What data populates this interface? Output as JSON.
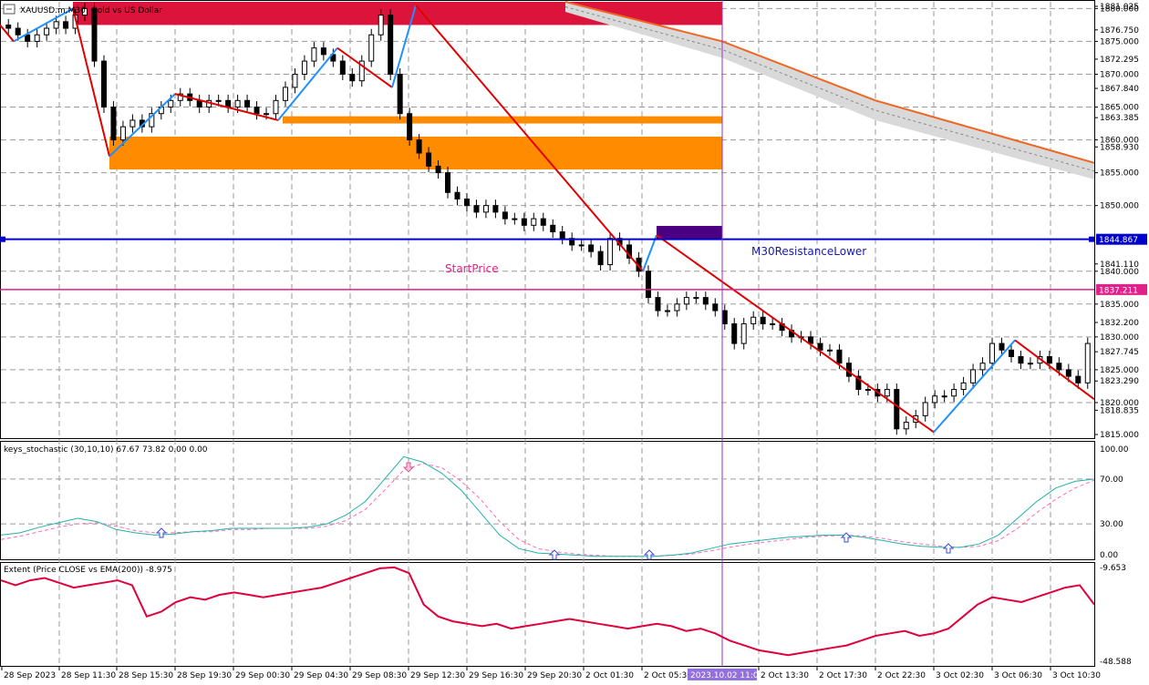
{
  "window": {
    "symbol_title": "XAUUSD.m,M30: Gold vs US Dollar"
  },
  "price_axis": {
    "ticks": [
      "1881.025",
      "1880.000",
      "1876.750",
      "1875.000",
      "1872.295",
      "1870.000",
      "1867.840",
      "1865.000",
      "1863.385",
      "1860.000",
      "1858.930",
      "1855.000",
      "1850.000",
      "1841.110",
      "1840.000",
      "1835.000",
      "1832.200",
      "1830.000",
      "1827.745",
      "1825.000",
      "1823.290",
      "1820.000",
      "1818.835",
      "1815.000"
    ],
    "range": [
      1815.0,
      1881.025
    ]
  },
  "price_badges": [
    {
      "label": "1844.867",
      "value": 1844.867,
      "color": "#0000cc"
    },
    {
      "label": "1837.211",
      "value": 1837.211,
      "color": "#e0218a"
    }
  ],
  "horizontal_lines": [
    {
      "value": 1844.867,
      "color": "#0000cc",
      "label": "M30ResistanceLower"
    },
    {
      "value": 1837.211,
      "color": "#e0218a",
      "label": "StartPrice"
    }
  ],
  "zones": [
    {
      "from": 1877.5,
      "to": 1881.025,
      "color": "#dc143c"
    },
    {
      "from": 1862.5,
      "to": 1863.6,
      "color": "#ff8c00"
    },
    {
      "from": 1855.5,
      "to": 1860.5,
      "color": "#ff8c00"
    },
    {
      "from": 1844.867,
      "to": 1846.9,
      "color": "#4b0082"
    }
  ],
  "stochastic": {
    "title": "keys_stochastic (30,10,10) 67.67 73.82 0.00 0.00",
    "ticks": [
      "100.00",
      "70.00",
      "30.00",
      "0.00"
    ],
    "main_color": "#20b2aa",
    "signal_color": "#ff69b4",
    "arrow_color": "#3a4ad8"
  },
  "extent": {
    "title": "Extent (Price CLOSE vs EMA(200)) -8.975",
    "ticks": [
      "-9.653",
      "-48.588"
    ],
    "color": "#e0003c"
  },
  "time_axis": {
    "labels": [
      "28 Sep 2023",
      "28 Sep 11:30",
      "28 Sep 15:30",
      "28 Sep 19:30",
      "29 Sep 00:30",
      "29 Sep 04:30",
      "29 Sep 08:30",
      "29 Sep 12:30",
      "29 Sep 16:30",
      "29 Sep 20:30",
      "2 Oct 01:30",
      "2 Oct 05:30",
      "2023.10.02 11:00",
      "2 Oct 13:30",
      "2 Oct 17:30",
      "2 Oct 22:30",
      "3 Oct 02:30",
      "3 Oct 06:30",
      "3 Oct 10:30"
    ],
    "cursor_label": "2023.10.02 11:00"
  },
  "chart_data": {
    "type": "candlestick",
    "symbol": "XAUUSD.m",
    "timeframe": "M30",
    "y_range": [
      1815.0,
      1881.025
    ],
    "zigzag_points": [
      {
        "time": "28 Sep 2023",
        "price": 1877.5
      },
      {
        "time": "28 Sep 09:30",
        "price": 1875.0
      },
      {
        "time": "28 Sep 11:30",
        "price": 1880.0
      },
      {
        "time": "28 Sep 13:30",
        "price": 1857.5
      },
      {
        "time": "28 Sep 19:30",
        "price": 1867.0
      },
      {
        "time": "29 Sep 02:00",
        "price": 1863.0
      },
      {
        "time": "29 Sep 06:00",
        "price": 1874.0
      },
      {
        "time": "29 Sep 11:30",
        "price": 1868.0
      },
      {
        "time": "29 Sep 12:30",
        "price": 1880.5
      },
      {
        "time": "2 Oct 04:30",
        "price": 1840.0
      },
      {
        "time": "2 Oct 05:30",
        "price": 1845.5
      },
      {
        "time": "3 Oct 02:00",
        "price": 1815.5
      },
      {
        "time": "3 Oct 06:30",
        "price": 1829.5
      },
      {
        "time": "3 Oct 11:30",
        "price": 1820.5
      }
    ],
    "ema_band": [
      {
        "time": "29 Sep 20:30",
        "upper": 1881.025,
        "lower": 1879.5
      },
      {
        "time": "2 Oct 05:30",
        "upper": 1875.0,
        "lower": 1872.5
      },
      {
        "time": "2 Oct 17:30",
        "upper": 1866.0,
        "lower": 1863.0
      },
      {
        "time": "3 Oct 10:30",
        "upper": 1856.5,
        "lower": 1854.0
      }
    ],
    "close_series": [
      1877,
      1876,
      1875,
      1876,
      1877,
      1878,
      1877,
      1879,
      1880,
      1872,
      1865,
      1860,
      1862,
      1863,
      1862,
      1864,
      1865,
      1866,
      1867,
      1866,
      1865,
      1866,
      1866,
      1865,
      1866,
      1865,
      1864,
      1864,
      1866,
      1868,
      1870,
      1872,
      1874,
      1873,
      1872,
      1870,
      1869,
      1872,
      1876,
      1879,
      1870,
      1864,
      1860,
      1858,
      1856,
      1855,
      1852,
      1851,
      1850,
      1849,
      1850,
      1849,
      1848,
      1848,
      1847,
      1848,
      1847,
      1846,
      1845,
      1844,
      1844,
      1843,
      1841,
      1845,
      1844,
      1842,
      1840,
      1836,
      1834,
      1834,
      1835,
      1836,
      1836,
      1835,
      1834,
      1832,
      1829,
      1832,
      1833,
      1832,
      1832,
      1831,
      1830,
      1830,
      1829,
      1828,
      1828,
      1826,
      1824,
      1822,
      1822,
      1821,
      1822,
      1816,
      1817,
      1818,
      1820,
      1821,
      1821,
      1822,
      1823,
      1825,
      1826,
      1829,
      1828,
      1827,
      1826,
      1826,
      1827,
      1826,
      1825,
      1824,
      1823,
      1829
    ],
    "stochastic_main": [
      20,
      22,
      27,
      31,
      35,
      32,
      25,
      22,
      20,
      21,
      23,
      24,
      26,
      26,
      26,
      26,
      27,
      30,
      38,
      50,
      70,
      90,
      85,
      75,
      60,
      40,
      20,
      8,
      4,
      3,
      2,
      1,
      1,
      1,
      1,
      2,
      4,
      8,
      12,
      14,
      16,
      18,
      19,
      20,
      20,
      18,
      15,
      12,
      10,
      9,
      9,
      12,
      20,
      35,
      50,
      62,
      68,
      70
    ],
    "stochastic_signal": [
      16,
      19,
      23,
      27,
      30,
      31,
      28,
      24,
      22,
      22,
      23,
      23,
      25,
      25,
      26,
      26,
      26,
      28,
      33,
      43,
      60,
      78,
      84,
      80,
      68,
      52,
      32,
      16,
      8,
      5,
      3,
      2,
      1,
      1,
      1,
      2,
      3,
      6,
      9,
      12,
      14,
      16,
      18,
      19,
      20,
      19,
      17,
      14,
      12,
      10,
      9,
      10,
      15,
      26,
      40,
      52,
      62,
      69
    ],
    "extent_series": [
      -15,
      -17,
      -15,
      -14,
      -16,
      -18,
      -17,
      -16,
      -15,
      -17,
      -30,
      -28,
      -24,
      -22,
      -23,
      -21,
      -20,
      -21,
      -22,
      -21,
      -20,
      -19,
      -18,
      -16,
      -14,
      -12,
      -10,
      -9.6,
      -12,
      -25,
      -30,
      -32,
      -33,
      -34,
      -33,
      -35,
      -34,
      -33,
      -32,
      -31,
      -32,
      -33,
      -34,
      -35,
      -34,
      -33,
      -34,
      -36,
      -35,
      -37,
      -40,
      -42,
      -44,
      -45,
      -46,
      -45,
      -44,
      -43,
      -42,
      -40,
      -38,
      -37,
      -36,
      -38,
      -37,
      -35,
      -30,
      -25,
      -22,
      -23,
      -24,
      -22,
      -20,
      -18,
      -17,
      -25
    ]
  }
}
